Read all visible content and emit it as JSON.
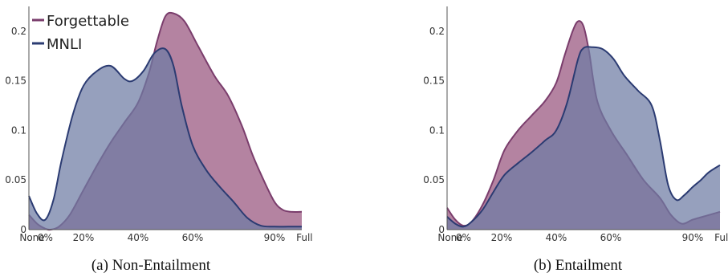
{
  "chart_data": [
    {
      "type": "area",
      "caption": "(a) Non-Entailment",
      "xticks": [
        "None",
        "0%",
        "20%",
        "40%",
        "60%",
        "90%",
        "Full"
      ],
      "xtick_positions": [
        0,
        6,
        20,
        40,
        60,
        90,
        101
      ],
      "xlim": [
        0,
        100
      ],
      "ylim": [
        0,
        0.225
      ],
      "yticks": [
        0,
        0.05,
        0.1,
        0.15,
        0.2
      ],
      "ytick_labels": [
        "0",
        "0.05",
        "0.1",
        "0.15",
        "0.2"
      ],
      "legend": "top-left",
      "series": [
        {
          "name": "Forgettable",
          "color": "#7a3d6c",
          "fill": "#b07c9c",
          "x": [
            0,
            3,
            6,
            8,
            11,
            15,
            20,
            25,
            30,
            35,
            40,
            44,
            47,
            50,
            53,
            57,
            62,
            68,
            73,
            78,
            82,
            86,
            90,
            93,
            96,
            100
          ],
          "y": [
            0.015,
            0.006,
            0.001,
            0.0,
            0.003,
            0.015,
            0.04,
            0.065,
            0.088,
            0.108,
            0.128,
            0.158,
            0.19,
            0.215,
            0.218,
            0.21,
            0.185,
            0.155,
            0.135,
            0.105,
            0.075,
            0.05,
            0.028,
            0.02,
            0.018,
            0.018
          ]
        },
        {
          "name": "MNLI",
          "color": "#2b3b72",
          "fill": "#6e7ca3",
          "x": [
            0,
            3,
            6,
            9,
            12,
            16,
            20,
            25,
            30,
            35,
            38,
            42,
            46,
            50,
            53,
            56,
            60,
            65,
            70,
            75,
            80,
            85,
            90,
            95,
            100
          ],
          "y": [
            0.034,
            0.016,
            0.01,
            0.03,
            0.07,
            0.115,
            0.145,
            0.16,
            0.165,
            0.152,
            0.15,
            0.16,
            0.178,
            0.182,
            0.165,
            0.125,
            0.085,
            0.06,
            0.043,
            0.028,
            0.012,
            0.004,
            0.003,
            0.003,
            0.003
          ]
        }
      ]
    },
    {
      "type": "area",
      "caption": "(b) Entailment",
      "xticks": [
        "None",
        "0%",
        "20%",
        "40%",
        "60%",
        "90%",
        "Full"
      ],
      "xtick_positions": [
        0,
        6,
        20,
        40,
        60,
        90,
        101
      ],
      "xlim": [
        0,
        100
      ],
      "ylim": [
        0,
        0.225
      ],
      "yticks": [
        0,
        0.05,
        0.1,
        0.15,
        0.2
      ],
      "ytick_labels": [
        "0",
        "0.05",
        "0.1",
        "0.15",
        "0.2"
      ],
      "legend": "none",
      "series": [
        {
          "name": "Forgettable",
          "color": "#7a3d6c",
          "fill": "#b07c9c",
          "x": [
            0,
            3,
            6,
            9,
            13,
            17,
            21,
            26,
            31,
            36,
            40,
            43,
            46,
            48,
            50,
            52,
            55,
            60,
            66,
            72,
            78,
            82,
            86,
            90,
            95,
            100
          ],
          "y": [
            0.022,
            0.01,
            0.004,
            0.008,
            0.025,
            0.05,
            0.08,
            0.1,
            0.115,
            0.13,
            0.148,
            0.175,
            0.2,
            0.21,
            0.205,
            0.18,
            0.13,
            0.1,
            0.075,
            0.05,
            0.032,
            0.015,
            0.006,
            0.01,
            0.014,
            0.018
          ]
        },
        {
          "name": "MNLI",
          "color": "#2b3b72",
          "fill": "#6e7ca3",
          "x": [
            0,
            3,
            6,
            9,
            13,
            17,
            21,
            26,
            31,
            36,
            40,
            44,
            48,
            50,
            53,
            57,
            61,
            65,
            70,
            75,
            78,
            81,
            84,
            87,
            90,
            93,
            96,
            100
          ],
          "y": [
            0.013,
            0.006,
            0.003,
            0.008,
            0.02,
            0.038,
            0.055,
            0.067,
            0.078,
            0.09,
            0.1,
            0.128,
            0.172,
            0.183,
            0.184,
            0.182,
            0.172,
            0.155,
            0.14,
            0.125,
            0.09,
            0.045,
            0.03,
            0.035,
            0.043,
            0.05,
            0.058,
            0.065
          ]
        }
      ]
    }
  ]
}
